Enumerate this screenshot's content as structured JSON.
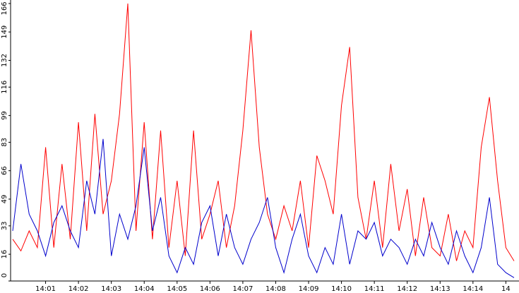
{
  "chart_data": {
    "type": "line",
    "x": [
      0,
      0.25,
      0.5,
      0.75,
      1,
      1.25,
      1.5,
      1.75,
      2,
      2.25,
      2.5,
      2.75,
      3,
      3.25,
      3.5,
      3.75,
      4,
      4.25,
      4.5,
      4.75,
      5,
      5.25,
      5.5,
      5.75,
      6,
      6.25,
      6.5,
      6.75,
      7,
      7.25,
      7.5,
      7.75,
      8,
      8.25,
      8.5,
      8.75,
      9,
      9.25,
      9.5,
      9.75,
      10,
      10.25,
      10.5,
      10.75,
      11,
      11.25,
      11.5,
      11.75,
      12,
      12.25,
      12.5,
      12.75,
      13,
      13.25,
      13.5,
      13.75,
      14,
      14.25,
      14.5,
      14.75,
      15,
      15.25
    ],
    "series": [
      {
        "color": "#ff0000",
        "values": [
          25,
          18,
          30,
          20,
          80,
          20,
          70,
          25,
          95,
          30,
          100,
          40,
          60,
          100,
          166,
          30,
          95,
          25,
          90,
          20,
          60,
          15,
          90,
          25,
          40,
          60,
          20,
          45,
          90,
          150,
          80,
          40,
          25,
          45,
          30,
          60,
          20,
          75,
          60,
          40,
          105,
          140,
          50,
          25,
          60,
          20,
          70,
          30,
          55,
          15,
          50,
          20,
          15,
          40,
          12,
          30,
          20,
          80,
          110,
          60,
          20,
          12
        ]
      },
      {
        "color": "#0000cc",
        "values": [
          30,
          70,
          40,
          30,
          15,
          35,
          45,
          30,
          20,
          60,
          40,
          85,
          15,
          40,
          25,
          45,
          80,
          30,
          50,
          15,
          5,
          20,
          10,
          35,
          45,
          15,
          40,
          20,
          10,
          25,
          35,
          50,
          20,
          5,
          25,
          40,
          15,
          5,
          20,
          10,
          40,
          10,
          30,
          25,
          35,
          15,
          25,
          20,
          10,
          25,
          15,
          35,
          20,
          10,
          30,
          15,
          5,
          20,
          50,
          10,
          5,
          2
        ]
      }
    ],
    "xlim": [
      0,
      15.4
    ],
    "xticks": [
      {
        "value": 1,
        "label": "14:01"
      },
      {
        "value": 2,
        "label": "14:02"
      },
      {
        "value": 3,
        "label": "14:03"
      },
      {
        "value": 4,
        "label": "14:04"
      },
      {
        "value": 5,
        "label": "14:05"
      },
      {
        "value": 6,
        "label": "14:06"
      },
      {
        "value": 7,
        "label": "14:07"
      },
      {
        "value": 8,
        "label": "14:08"
      },
      {
        "value": 9,
        "label": "14:09"
      },
      {
        "value": 10,
        "label": "14:10"
      },
      {
        "value": 11,
        "label": "14:11"
      },
      {
        "value": 12,
        "label": "14:12"
      },
      {
        "value": 13,
        "label": "14:13"
      },
      {
        "value": 14,
        "label": "14:14"
      },
      {
        "value": 15,
        "label": "14"
      }
    ],
    "ylim": [
      0,
      166
    ],
    "yticks": [
      0,
      16,
      33,
      49,
      66,
      83,
      99,
      116,
      132,
      149,
      166
    ]
  }
}
